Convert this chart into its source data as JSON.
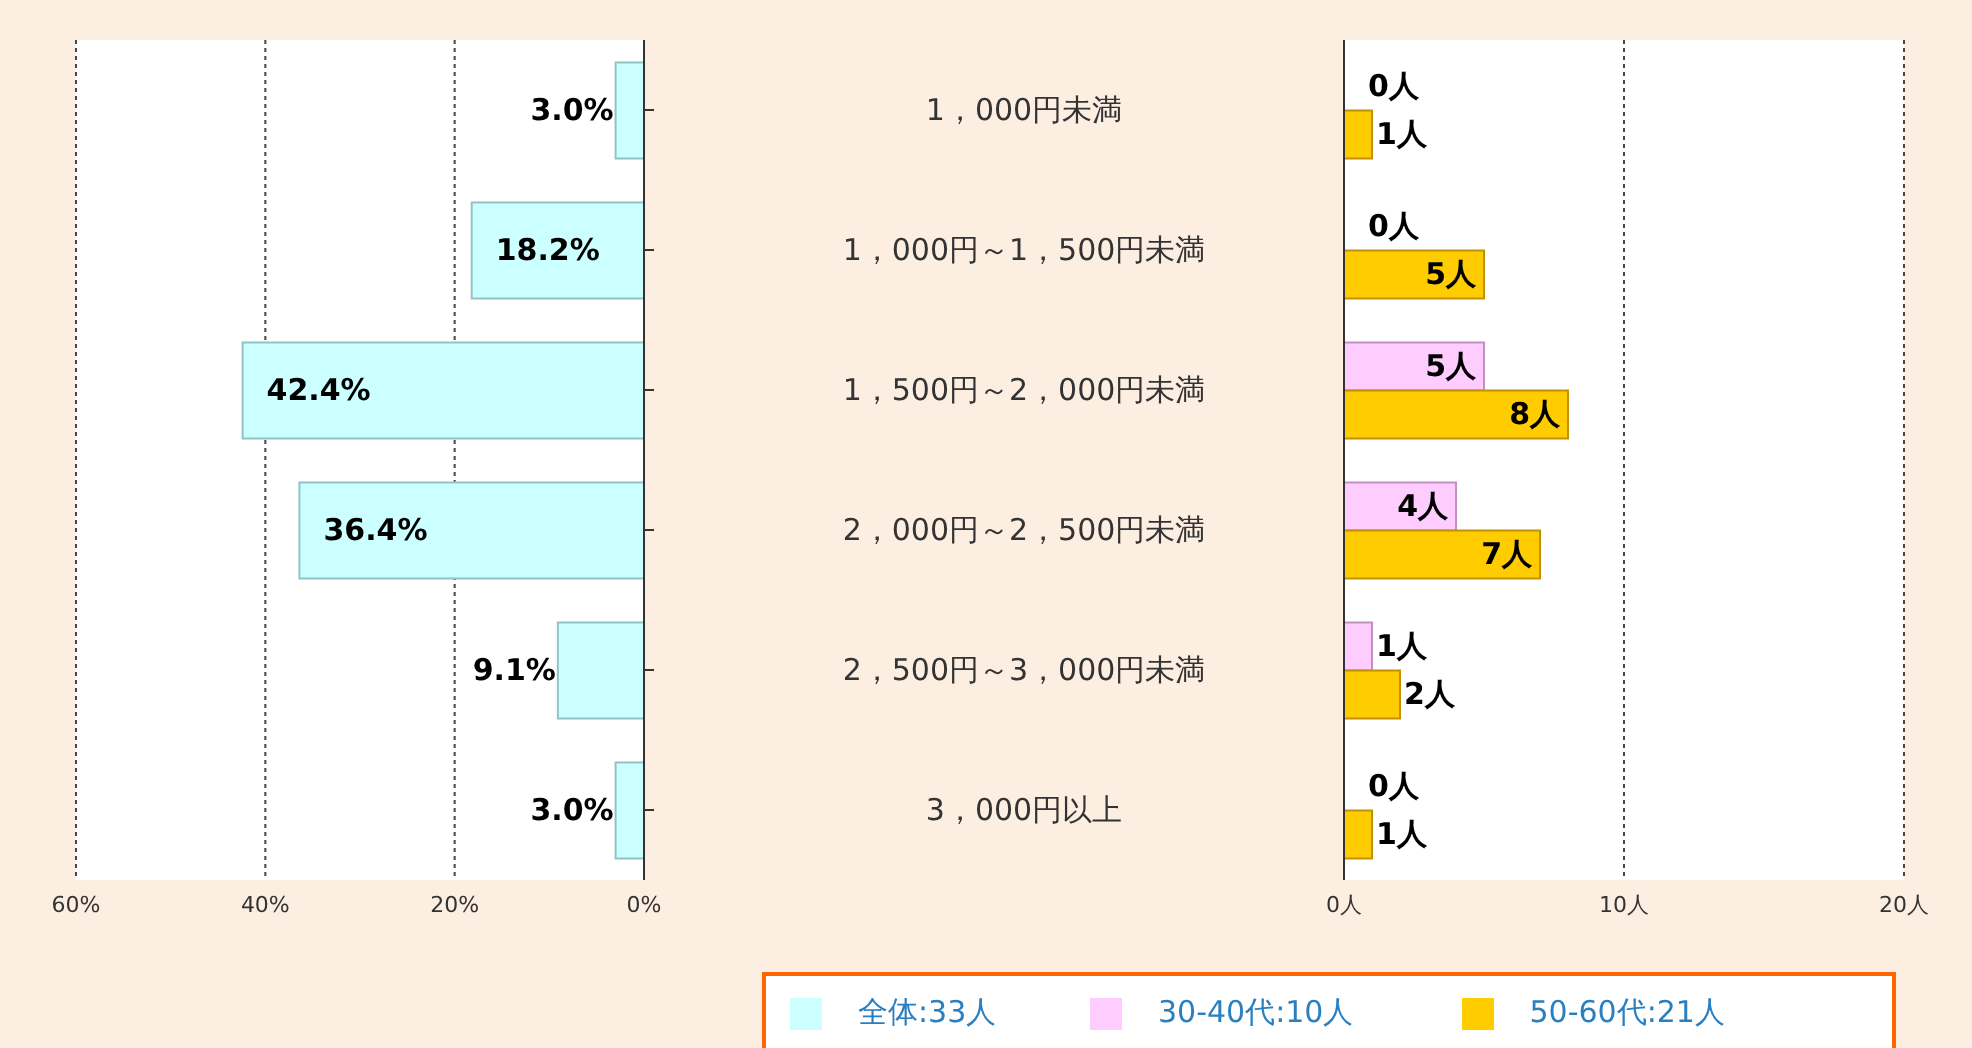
{
  "chart_data": [
    {
      "type": "bar",
      "orientation": "horizontal",
      "categories": [
        "1，000円未満",
        "1，000円～1，500円未満",
        "1，500円～2，000円未満",
        "2，000円～2，500円未満",
        "2，500円～3，000円未満",
        "3，000円以上"
      ],
      "series": [
        {
          "name": "全体:33人",
          "color": "#ccffff",
          "values": [
            3.0,
            18.2,
            42.4,
            36.4,
            9.1,
            3.0
          ],
          "value_labels": [
            "3.0%",
            "18.2%",
            "42.4%",
            "36.4%",
            "9.1%",
            "3.0%"
          ]
        }
      ],
      "xlim": [
        60,
        0
      ],
      "xticks": [
        {
          "value": 60,
          "label": "60%"
        },
        {
          "value": 40,
          "label": "40%"
        },
        {
          "value": 20,
          "label": "20%"
        },
        {
          "value": 0,
          "label": "0%"
        }
      ],
      "grid": "x",
      "legend": "bottom"
    },
    {
      "type": "bar",
      "orientation": "horizontal",
      "categories": [
        "1，000円未満",
        "1，000円～1，500円未満",
        "1，500円～2，000円未満",
        "2，000円～2，500円未満",
        "2，500円～3，000円未満",
        "3，000円以上"
      ],
      "series": [
        {
          "name": "30-40代:10人",
          "color": "#ffccff",
          "values": [
            0,
            0,
            5,
            4,
            1,
            0
          ],
          "value_labels": [
            "0人",
            "0人",
            "5人",
            "4人",
            "1人",
            "0人"
          ]
        },
        {
          "name": "50-60代:21人",
          "color": "#ffcc00",
          "values": [
            1,
            5,
            8,
            7,
            2,
            1
          ],
          "value_labels": [
            "1人",
            "5人",
            "8人",
            "7人",
            "2人",
            "1人"
          ]
        }
      ],
      "xlim": [
        0,
        20
      ],
      "xticks": [
        {
          "value": 0,
          "label": "0人"
        },
        {
          "value": 10,
          "label": "10人"
        },
        {
          "value": 20,
          "label": "20人"
        }
      ],
      "grid": "x",
      "legend": "bottom",
      "tick_labels": "x"
    }
  ]
}
